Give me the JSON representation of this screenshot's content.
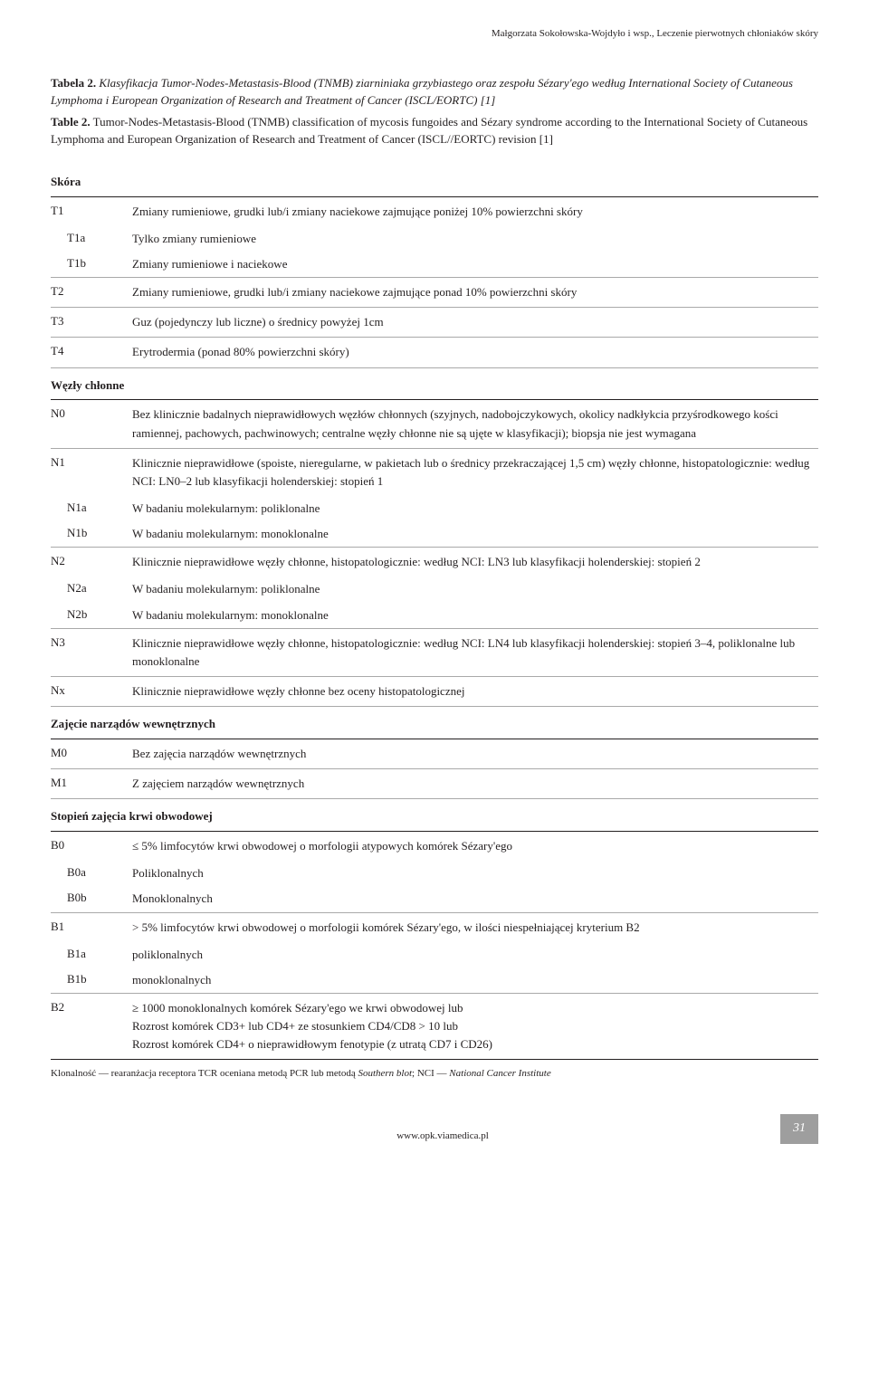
{
  "running_header": "Małgorzata Sokołowska-Wojdyło i wsp., Leczenie pierwotnych chłoniaków skóry",
  "caption": {
    "pl_label": "Tabela 2.",
    "pl_text": "Klasyfikacja Tumor-Nodes-Metastasis-Blood (TNMB) ziarniniaka grzybiastego oraz zespołu Sézary'ego według International Society of Cutaneous Lymphoma i European Organization of Research and Treatment of Cancer (ISCL/EORTC) [1]",
    "en_label": "Table 2.",
    "en_text": "Tumor-Nodes-Metastasis-Blood (TNMB) classification of mycosis fungoides and Sézary syndrome according to the International Society of Cutaneous Lymphoma and European Organization of Research and Treatment of Cancer (ISCL/​/EORTC) revision [1]"
  },
  "sections": {
    "skin": {
      "head": "Skóra",
      "rows": [
        {
          "code": "T1",
          "desc": "Zmiany rumieniowe, grudki lub/i zmiany naciekowe zajmujące poniżej 10% powierzchni skóry",
          "sub": false,
          "border": false
        },
        {
          "code": "T1a",
          "desc": "Tylko zmiany rumieniowe",
          "sub": true,
          "border": false
        },
        {
          "code": "T1b",
          "desc": "Zmiany rumieniowe i naciekowe",
          "sub": true,
          "border": true
        },
        {
          "code": "T2",
          "desc": "Zmiany rumieniowe, grudki lub/i zmiany naciekowe zajmujące ponad 10% powierzchni skóry",
          "sub": false,
          "border": true
        },
        {
          "code": "T3",
          "desc": "Guz (pojedynczy lub liczne) o średnicy powyżej 1cm",
          "sub": false,
          "border": true
        },
        {
          "code": "T4",
          "desc": "Erytrodermia (ponad 80% powierzchni skóry)",
          "sub": false,
          "border": true
        }
      ]
    },
    "nodes": {
      "head": "Węzły chłonne",
      "rows": [
        {
          "code": "N0",
          "desc": "Bez klinicznie badalnych nieprawidłowych węzłów chłonnych (szyjnych, nadobojczykowych, okolicy nadkłykcia przyśrodkowego kości ramiennej, pachowych, pachwinowych; centralne węzły chłonne nie są ujęte w klasyfikacji); biopsja nie jest wymagana",
          "sub": false,
          "border": true
        },
        {
          "code": "N1",
          "desc": "Klinicznie nieprawidłowe (spoiste, nieregularne, w pakietach lub o średnicy przekraczającej 1,5 cm) węzły chłonne, histopatologicznie: według NCI: LN0–2 lub klasyfikacji holenderskiej: stopień 1",
          "sub": false,
          "border": false
        },
        {
          "code": "N1a",
          "desc": "W badaniu molekularnym: poliklonalne",
          "sub": true,
          "border": false
        },
        {
          "code": "N1b",
          "desc": "W badaniu molekularnym: monoklonalne",
          "sub": true,
          "border": true
        },
        {
          "code": "N2",
          "desc": "Klinicznie nieprawidłowe węzły chłonne, histopatologicznie: według NCI: LN3 lub klasyfikacji holenderskiej: stopień 2",
          "sub": false,
          "border": false
        },
        {
          "code": "N2a",
          "desc": "W badaniu molekularnym: poliklonalne",
          "sub": true,
          "border": false
        },
        {
          "code": "N2b",
          "desc": "W badaniu molekularnym: monoklonalne",
          "sub": true,
          "border": true
        },
        {
          "code": "N3",
          "desc": "Klinicznie nieprawidłowe węzły chłonne, histopatologicznie: według NCI: LN4 lub klasyfikacji holenderskiej: stopień 3–4, poliklonalne lub monoklonalne",
          "sub": false,
          "border": true
        },
        {
          "code": "Nx",
          "desc": "Klinicznie nieprawidłowe węzły chłonne bez oceny histopatologicznej",
          "sub": false,
          "border": true
        }
      ]
    },
    "visceral": {
      "head": "Zajęcie narządów wewnętrznych",
      "rows": [
        {
          "code": "M0",
          "desc": "Bez zajęcia narządów wewnętrznych",
          "sub": false,
          "border": true
        },
        {
          "code": "M1",
          "desc": "Z zajęciem narządów wewnętrznych",
          "sub": false,
          "border": true
        }
      ]
    },
    "blood": {
      "head": "Stopień zajęcia krwi obwodowej",
      "rows": [
        {
          "code": "B0",
          "desc": "≤ 5% limfocytów krwi obwodowej o morfologii atypowych komórek Sézary'ego",
          "sub": false,
          "border": false
        },
        {
          "code": "B0a",
          "desc": "Poliklonalnych",
          "sub": true,
          "border": false
        },
        {
          "code": "B0b",
          "desc": "Monoklonalnych",
          "sub": true,
          "border": true
        },
        {
          "code": "B1",
          "desc": "> 5% limfocytów krwi obwodowej o morfologii komórek Sézary'ego, w ilości niespełniającej kryterium B2",
          "sub": false,
          "border": false
        },
        {
          "code": "B1a",
          "desc": "poliklonalnych",
          "sub": true,
          "border": false
        },
        {
          "code": "B1b",
          "desc": "monoklonalnych",
          "sub": true,
          "border": true
        },
        {
          "code": "B2",
          "desc": "≥ 1000 monoklonalnych komórek Sézary'ego we krwi obwodowej lub\nRozrost komórek CD3+ lub CD4+ ze stosunkiem CD4/CD8 > 10 lub\nRozrost komórek CD4+ o nieprawidłowym fenotypie (z utratą CD7 i CD26)",
          "sub": false,
          "border": false
        }
      ]
    }
  },
  "footnote": "Klonalność — rearanżacja receptora TCR oceniana metodą PCR lub metodą Southern blot; NCI — National Cancer Institute",
  "footer": {
    "url": "www.opk.viamedica.pl",
    "page": "31"
  },
  "colors": {
    "text": "#231f20",
    "rule_strong": "#231f20",
    "rule_light": "#a9a9a9",
    "footer_tab_bg": "#9e9e9e",
    "footer_tab_text": "#ffffff",
    "background": "#ffffff"
  }
}
